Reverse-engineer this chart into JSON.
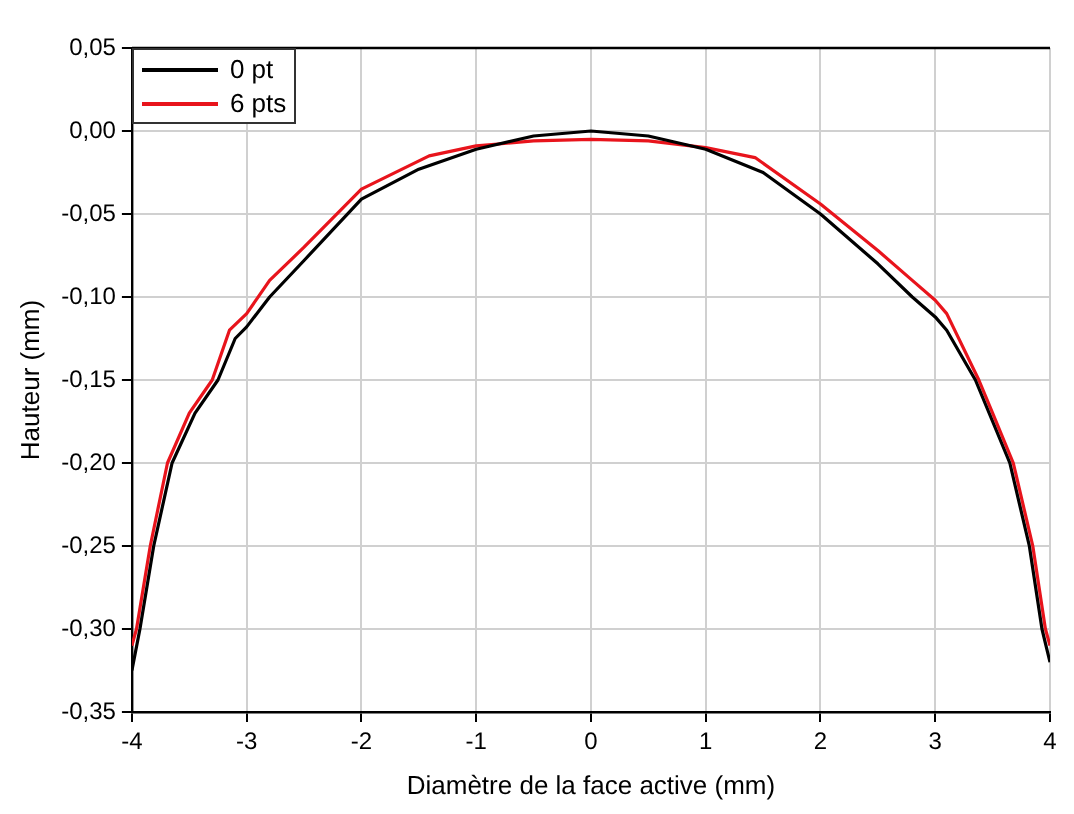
{
  "chart_data": {
    "type": "line",
    "xlabel": "Diamètre de la face active (mm)",
    "ylabel": "Hauteur (mm)",
    "xlim": [
      -4,
      4
    ],
    "xticks": [
      -4,
      -3,
      -2,
      -1,
      0,
      1,
      2,
      3,
      4
    ],
    "ylim": [
      -0.35,
      0.05
    ],
    "yticks": [
      {
        "value": -0.35,
        "label": "-0,35"
      },
      {
        "value": -0.3,
        "label": "-0,30"
      },
      {
        "value": -0.25,
        "label": "-0,25"
      },
      {
        "value": -0.2,
        "label": "-0,20"
      },
      {
        "value": -0.15,
        "label": "-0,15"
      },
      {
        "value": -0.1,
        "label": "-0,10"
      },
      {
        "value": -0.05,
        "label": "-0,05"
      },
      {
        "value": 0,
        "label": "0,00"
      },
      {
        "value": 0.05,
        "label": "0,05"
      }
    ],
    "grid": true,
    "legend": "top left",
    "marker": "none",
    "line_style": "solid",
    "series": [
      {
        "name": "0 pt",
        "color": "#000000",
        "x": [
          -4,
          -3.93,
          -3.81,
          -3.65,
          -3.45,
          -3.25,
          -3.1,
          -3,
          -2.8,
          -2.5,
          -2,
          -1.5,
          -1,
          -0.5,
          0,
          0.5,
          1,
          1.5,
          2,
          2.5,
          2.8,
          3,
          3.1,
          3.35,
          3.5,
          3.65,
          3.82,
          3.93,
          4
        ],
        "values": [
          -0.325,
          -0.3,
          -0.25,
          -0.2,
          -0.17,
          -0.15,
          -0.125,
          -0.118,
          -0.1,
          -0.078,
          -0.041,
          -0.023,
          -0.011,
          -0.003,
          0,
          -0.003,
          -0.011,
          -0.025,
          -0.05,
          -0.08,
          -0.1,
          -0.112,
          -0.12,
          -0.15,
          -0.175,
          -0.2,
          -0.25,
          -0.3,
          -0.32
        ]
      },
      {
        "name": "6 pts",
        "color": "#e8141c",
        "x": [
          -4,
          -3.96,
          -3.84,
          -3.69,
          -3.5,
          -3.3,
          -3.15,
          -3,
          -2.8,
          -2.5,
          -2,
          -1.41,
          -1,
          -0.5,
          0,
          0.5,
          1,
          1.43,
          2,
          2.5,
          2.8,
          3,
          3.1,
          3.38,
          3.5,
          3.68,
          3.85,
          3.96,
          4
        ],
        "values": [
          -0.31,
          -0.3,
          -0.25,
          -0.2,
          -0.17,
          -0.15,
          -0.12,
          -0.11,
          -0.09,
          -0.07,
          -0.035,
          -0.015,
          -0.009,
          -0.006,
          -0.005,
          -0.006,
          -0.01,
          -0.016,
          -0.044,
          -0.072,
          -0.09,
          -0.102,
          -0.11,
          -0.15,
          -0.17,
          -0.2,
          -0.25,
          -0.3,
          -0.31
        ]
      }
    ]
  }
}
